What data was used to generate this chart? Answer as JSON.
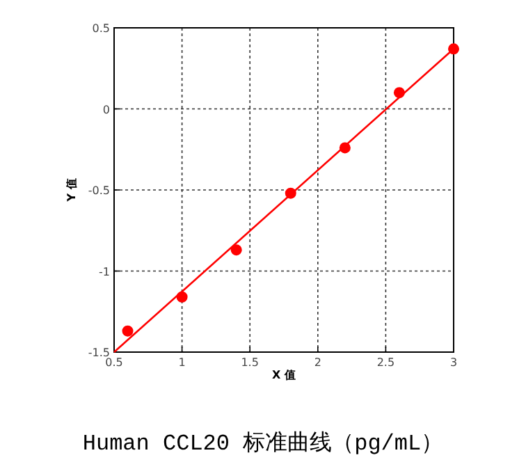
{
  "chart_data": {
    "type": "scatter",
    "title": "Human CCL20 标准曲线（pg/mL）",
    "xlabel": "X 值",
    "ylabel": "Y 值",
    "xlim": [
      0.5,
      3
    ],
    "ylim": [
      -1.5,
      0.5
    ],
    "xticks": [
      0.5,
      1,
      1.5,
      2,
      2.5,
      3
    ],
    "yticks": [
      -1.5,
      -1,
      -0.5,
      0,
      0.5
    ],
    "grid": true,
    "series": [
      {
        "marker": "circle",
        "color": "#ff0000",
        "x": [
          0.6,
          1.0,
          1.4,
          1.8,
          2.2,
          2.6,
          3.0
        ],
        "values": [
          -1.37,
          -1.16,
          -0.87,
          -0.52,
          -0.24,
          0.1,
          0.37
        ]
      },
      {
        "type": "line",
        "marker": "none",
        "color": "#ff0000",
        "x": [
          0.5,
          3
        ],
        "values": [
          -1.5,
          0.37
        ]
      }
    ]
  }
}
